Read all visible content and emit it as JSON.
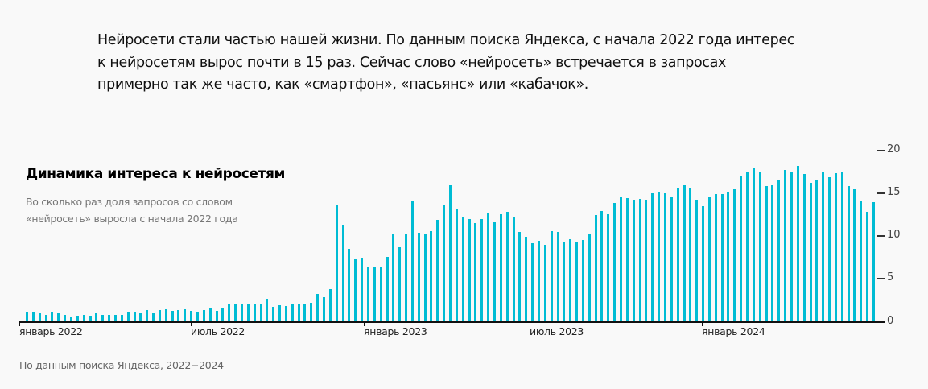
{
  "intro": {
    "lines": [
      "Нейросети стали частью нашей жизни. По данным поиска Яндекса, с начала 2022 года интерес",
      "к нейросетям вырос почти в 15 раз. Сейчас слово «нейросеть» встречается в запросах",
      "примерно так же часто, как «смартфон», «пасьянс» или «кабачок»."
    ]
  },
  "footer": "По данным поиска Яндекса, 2022−2024",
  "chart_data": {
    "type": "bar",
    "title": "Динамика интереса к нейросетям",
    "subtitle": "Во сколько раз доля запросов со словом «нейросеть» выросла с начала 2022 года",
    "xlabel": "",
    "ylabel": "",
    "ylim": [
      0,
      20
    ],
    "yticks": [
      0,
      5,
      10,
      15,
      20
    ],
    "grid": false,
    "legend": null,
    "color": "#00bcd4",
    "x_tick_labels": [
      "январь 2022",
      "июль 2022",
      "январь 2023",
      "июль 2023",
      "январь 2024"
    ],
    "frequency": "weekly",
    "values": [
      1.1,
      1.0,
      0.9,
      0.8,
      1.0,
      0.9,
      0.8,
      0.6,
      0.7,
      0.8,
      0.7,
      0.9,
      0.8,
      0.8,
      0.8,
      0.8,
      1.1,
      1.0,
      0.9,
      1.3,
      0.9,
      1.3,
      1.4,
      1.2,
      1.3,
      1.4,
      1.2,
      1.0,
      1.3,
      1.5,
      1.2,
      1.6,
      2.1,
      2.0,
      2.1,
      2.1,
      2.0,
      2.1,
      2.6,
      1.7,
      1.9,
      1.8,
      2.1,
      2.0,
      2.1,
      2.2,
      3.2,
      2.8,
      3.8,
      13.5,
      11.3,
      8.5,
      7.3,
      7.4,
      6.4,
      6.3,
      6.4,
      7.5,
      10.1,
      8.6,
      10.2,
      14.1,
      10.3,
      10.2,
      10.5,
      11.8,
      13.5,
      15.9,
      13.1,
      12.2,
      11.9,
      11.5,
      11.9,
      12.6,
      11.6,
      12.5,
      12.8,
      12.2,
      10.4,
      9.9,
      9.1,
      9.4,
      8.9,
      10.5,
      10.4,
      9.3,
      9.6,
      9.2,
      9.5,
      10.1,
      12.4,
      12.9,
      12.5,
      13.8,
      14.6,
      14.4,
      14.2,
      14.3,
      14.2,
      14.9,
      15.0,
      14.9,
      14.5,
      15.5,
      15.9,
      15.6,
      14.2,
      13.4,
      14.6,
      14.8,
      14.8,
      15.1,
      15.4,
      17.0,
      17.4,
      17.9,
      17.5,
      15.8,
      15.9,
      16.5,
      17.7,
      17.5,
      18.1,
      17.2,
      16.2,
      16.4,
      17.5,
      16.8,
      17.3,
      17.5,
      15.8,
      15.4,
      14.0,
      12.8,
      13.9
    ]
  },
  "axis": {
    "y_labels": [
      "20",
      "15",
      "10",
      "5",
      "0"
    ]
  }
}
